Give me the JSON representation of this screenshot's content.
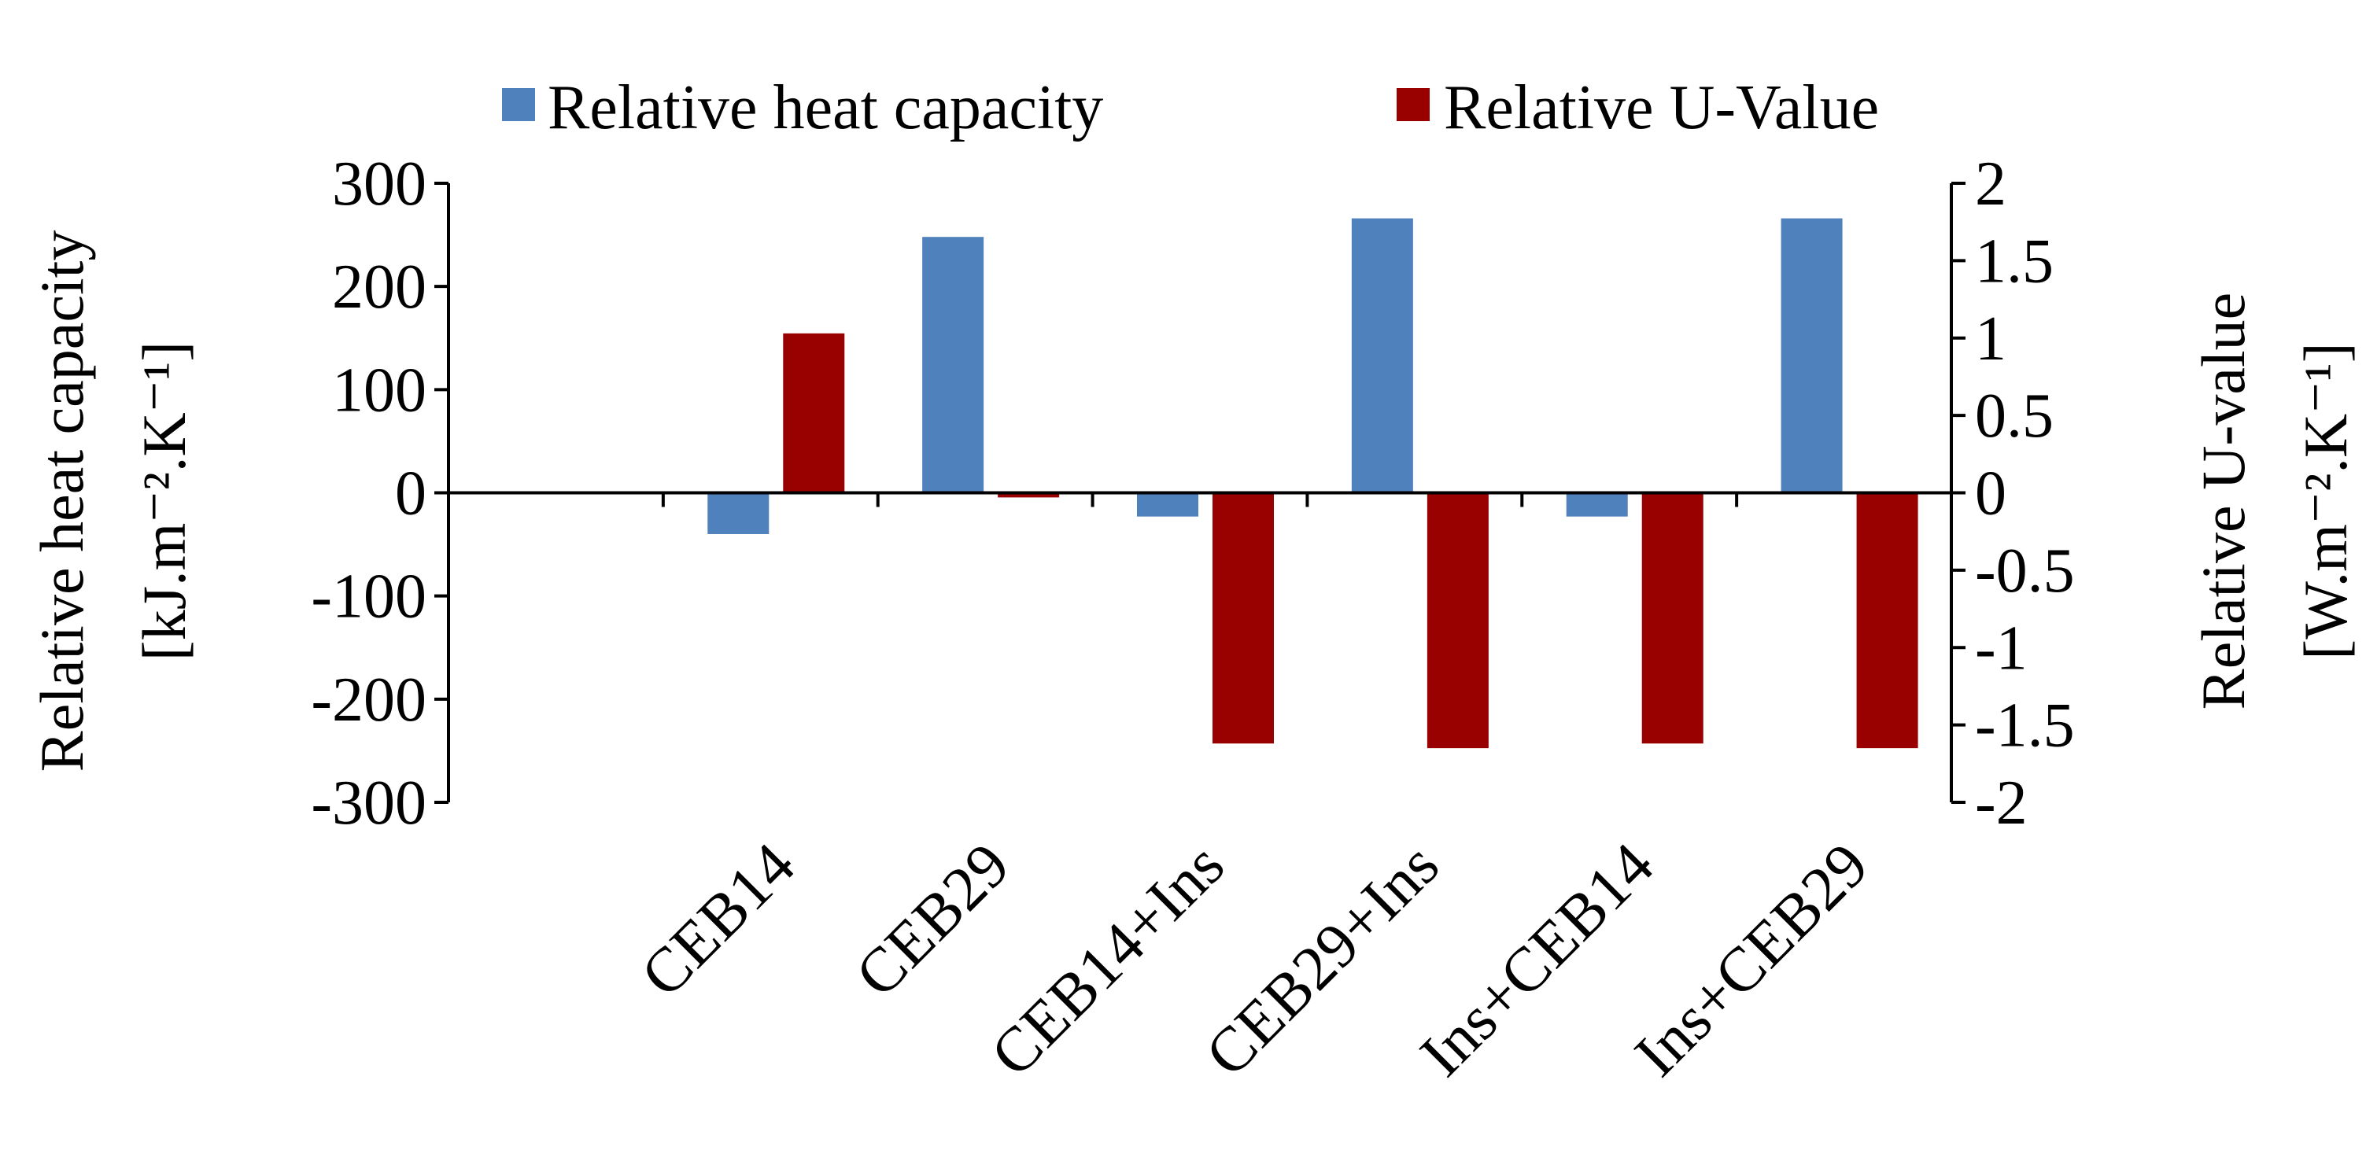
{
  "chart_data": {
    "type": "bar",
    "categories": [
      "CEB14",
      "CEB29",
      "CEB14+Ins",
      "CEB29+Ins",
      "Ins+CEB14",
      "Ins+CEB29"
    ],
    "series": [
      {
        "name": "Relative heat capacity",
        "axis": "left",
        "color": "#4F81BD",
        "values": [
          -40,
          248,
          -23,
          266,
          -23,
          266
        ]
      },
      {
        "name": "Relative U-Value",
        "axis": "right",
        "color": "#990000",
        "values": [
          1.03,
          -0.03,
          -1.62,
          -1.65,
          -1.62,
          -1.65
        ]
      }
    ],
    "y_left": {
      "label_line1": "Relative heat capacity",
      "label_line2": "[kJ.m⁻².K⁻¹]",
      "ylim": [
        -300,
        300
      ],
      "ticks": [
        "-300",
        "-200",
        "-100",
        "0",
        "100",
        "200",
        "300"
      ]
    },
    "y_right": {
      "label_line1": "Relative U-value",
      "label_line2": "[W.m⁻².K⁻¹]",
      "ylim": [
        -2,
        2
      ],
      "ticks": [
        "-2",
        "-1.5",
        "-1",
        "-0.5",
        "0",
        "0.5",
        "1",
        "1.5",
        "2"
      ]
    },
    "legend": {
      "position": "top",
      "entries": [
        "Relative heat capacity",
        "Relative U-Value"
      ]
    }
  }
}
